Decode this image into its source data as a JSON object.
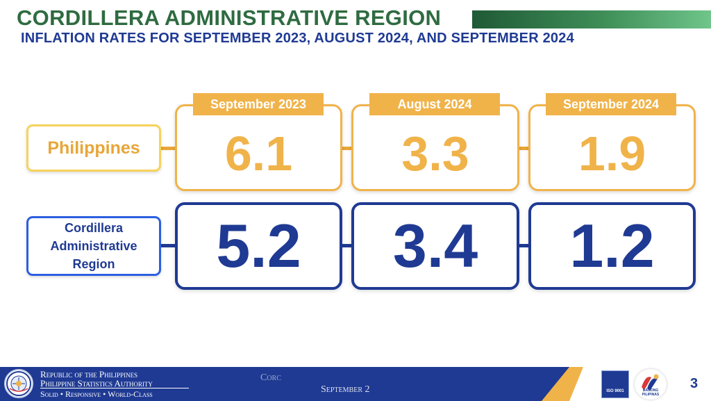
{
  "title": "CORDILLERA ADMINISTRATIVE REGION",
  "subtitle": "INFLATION RATES FOR SEPTEMBER 2023, AUGUST 2024, AND SEPTEMBER 2024",
  "periods": [
    "September 2023",
    "August 2024",
    "September 2024"
  ],
  "rows": [
    {
      "label": "Philippines",
      "values": [
        "6.1",
        "3.3",
        "1.9"
      ]
    },
    {
      "label": "Cordillera Administrative Region",
      "values": [
        "5.2",
        "3.4",
        "1.2"
      ]
    }
  ],
  "footer": {
    "line1": "Republic of the Philippines",
    "line2": "Philippine Statistics Authority",
    "line3": "Solid • Responsive • World-Class",
    "faded_text_1": "Corc",
    "faded_text_2": "September 2",
    "iso_text": "ISO 9001",
    "logo_text": "BAGONG PILIPINAS",
    "page_number": "3"
  },
  "colors": {
    "title_green": "#2f6b41",
    "navy": "#1f3a93",
    "gold": "#f0b34a",
    "yellow_border": "#f6d35a",
    "accent_blue": "#2c5fe0"
  },
  "icons": [
    "psa-seal-icon",
    "iso-9001-badge-icon",
    "bagong-pilipinas-logo-icon"
  ]
}
